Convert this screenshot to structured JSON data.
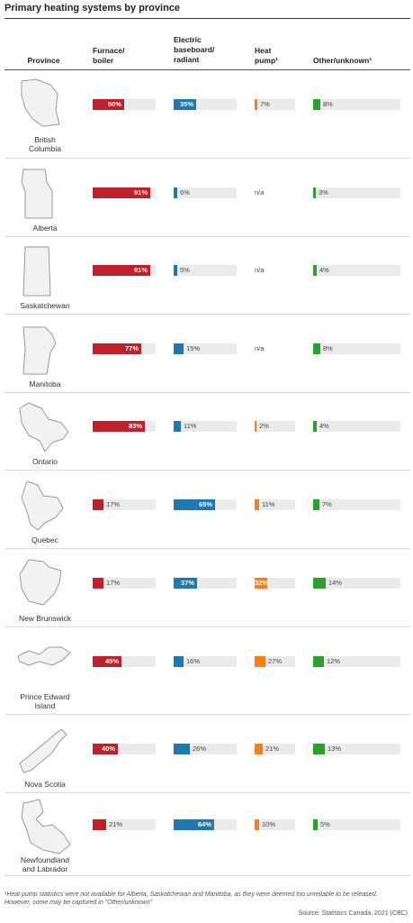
{
  "title": "Primary heating systems by province",
  "headers": {
    "province": "Province",
    "c1_line1": "Furnace/",
    "c1_line2": "boiler",
    "c2_line1": "Electric",
    "c2_line2": "baseboard/",
    "c2_line3": "radiant",
    "c3_line1": "Heat",
    "c3_line2": "pump¹",
    "c4": "Other/unknown¹"
  },
  "colors": {
    "furnace": "#c0202a",
    "electric": "#1f78b4",
    "heatpump": "#ff7f0e",
    "other": "#2ca02c",
    "track": "#ebebeb"
  },
  "icons": {
    "province_maps": "province-outline-icon"
  },
  "chart_data": {
    "type": "table",
    "title": "Primary heating systems by province",
    "columns": [
      "Furnace/ boiler",
      "Electric baseboard/ radiant",
      "Heat pump¹",
      "Other/unknown¹"
    ],
    "unit": "%",
    "rows": [
      {
        "province": "British Columbia",
        "name_lines": [
          "British",
          "Columbia"
        ],
        "furnace": 50,
        "electric": 35,
        "heatpump": 7,
        "other": 8
      },
      {
        "province": "Alberta",
        "name_lines": [
          "Alberta"
        ],
        "furnace": 91,
        "electric": 6,
        "heatpump": null,
        "other": 3
      },
      {
        "province": "Saskatchewan",
        "name_lines": [
          "Saskatchewan"
        ],
        "furnace": 91,
        "electric": 5,
        "heatpump": null,
        "other": 4
      },
      {
        "province": "Manitoba",
        "name_lines": [
          "Manitoba"
        ],
        "furnace": 77,
        "electric": 15,
        "heatpump": null,
        "other": 8
      },
      {
        "province": "Ontario",
        "name_lines": [
          "Ontario"
        ],
        "furnace": 83,
        "electric": 11,
        "heatpump": 2,
        "other": 4
      },
      {
        "province": "Quebec",
        "name_lines": [
          "Quebec"
        ],
        "furnace": 17,
        "electric": 65,
        "heatpump": 11,
        "other": 7
      },
      {
        "province": "New Brunswick",
        "name_lines": [
          "New Brunswick"
        ],
        "furnace": 17,
        "electric": 37,
        "heatpump": 32,
        "other": 14
      },
      {
        "province": "Prince Edward Island",
        "name_lines": [
          "Prince Edward",
          "Island"
        ],
        "furnace": 45,
        "electric": 16,
        "heatpump": 27,
        "other": 12
      },
      {
        "province": "Nova Scotia",
        "name_lines": [
          "Nova Scotia"
        ],
        "furnace": 40,
        "electric": 26,
        "heatpump": 21,
        "other": 13
      },
      {
        "province": "Newfoundland and Labrador",
        "name_lines": [
          "Newfoundland",
          "and Labrador"
        ],
        "furnace": 21,
        "electric": 64,
        "heatpump": 10,
        "other": 5
      }
    ],
    "na_text": "n/a",
    "value_labels_inside_threshold": 30
  },
  "footnote": "¹Heat pump statistics were not available for Alberta, Saskatchewan and Manitoba, as they were deemed too unreliable to be released. However, some may be captured in \"Other/unknown\"",
  "source": "Source: Statistics Canada, 2021 (CBC)"
}
